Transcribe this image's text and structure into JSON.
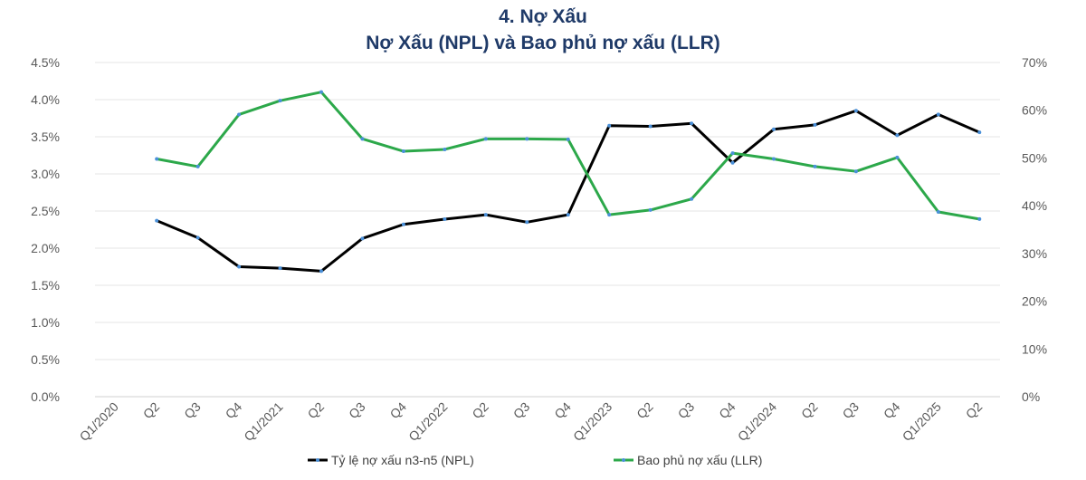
{
  "chart_data": {
    "type": "line",
    "title": "4. Nợ Xấu",
    "subtitle": "Nợ Xấu (NPL) và Bao phủ nợ xấu (LLR)",
    "categories": [
      "Q1/2020",
      "Q2",
      "Q3",
      "Q4",
      "Q1/2021",
      "Q2",
      "Q3",
      "Q4",
      "Q1/2022",
      "Q2",
      "Q3",
      "Q4",
      "Q1/2023",
      "Q2",
      "Q3",
      "Q4",
      "Q1/2024",
      "Q2",
      "Q3",
      "Q4",
      "Q1/2025",
      "Q2"
    ],
    "y_left": {
      "ylim": [
        0,
        4.5
      ],
      "ticks": [
        "0.0%",
        "0.5%",
        "1.0%",
        "1.5%",
        "2.0%",
        "2.5%",
        "3.0%",
        "3.5%",
        "4.0%",
        "4.5%"
      ]
    },
    "y_right": {
      "ylim": [
        0,
        70
      ],
      "ticks": [
        "0%",
        "10%",
        "20%",
        "30%",
        "40%",
        "50%",
        "60%",
        "70%"
      ]
    },
    "grid": true,
    "legend_position": "bottom",
    "series": [
      {
        "name": "Tỷ lệ nợ xấu n3-n5 (NPL)",
        "axis": "left",
        "color": "#000000",
        "unit": "%",
        "values": [
          null,
          2.37,
          2.14,
          1.75,
          1.73,
          1.69,
          2.13,
          2.32,
          2.39,
          2.45,
          2.35,
          2.45,
          3.65,
          3.64,
          3.68,
          3.15,
          3.6,
          3.66,
          3.85,
          3.52,
          3.8,
          3.56
        ]
      },
      {
        "name": "Bao phủ nợ xấu (LLR)",
        "axis": "right",
        "color": "#2ca84a",
        "unit": "%",
        "values": [
          null,
          49.8,
          48.2,
          59.1,
          62.0,
          63.8,
          54.0,
          51.4,
          51.8,
          54.0,
          54.0,
          53.9,
          38.1,
          39.1,
          41.4,
          51.0,
          49.8,
          48.2,
          47.2,
          50.1,
          38.7,
          37.2
        ]
      }
    ]
  }
}
